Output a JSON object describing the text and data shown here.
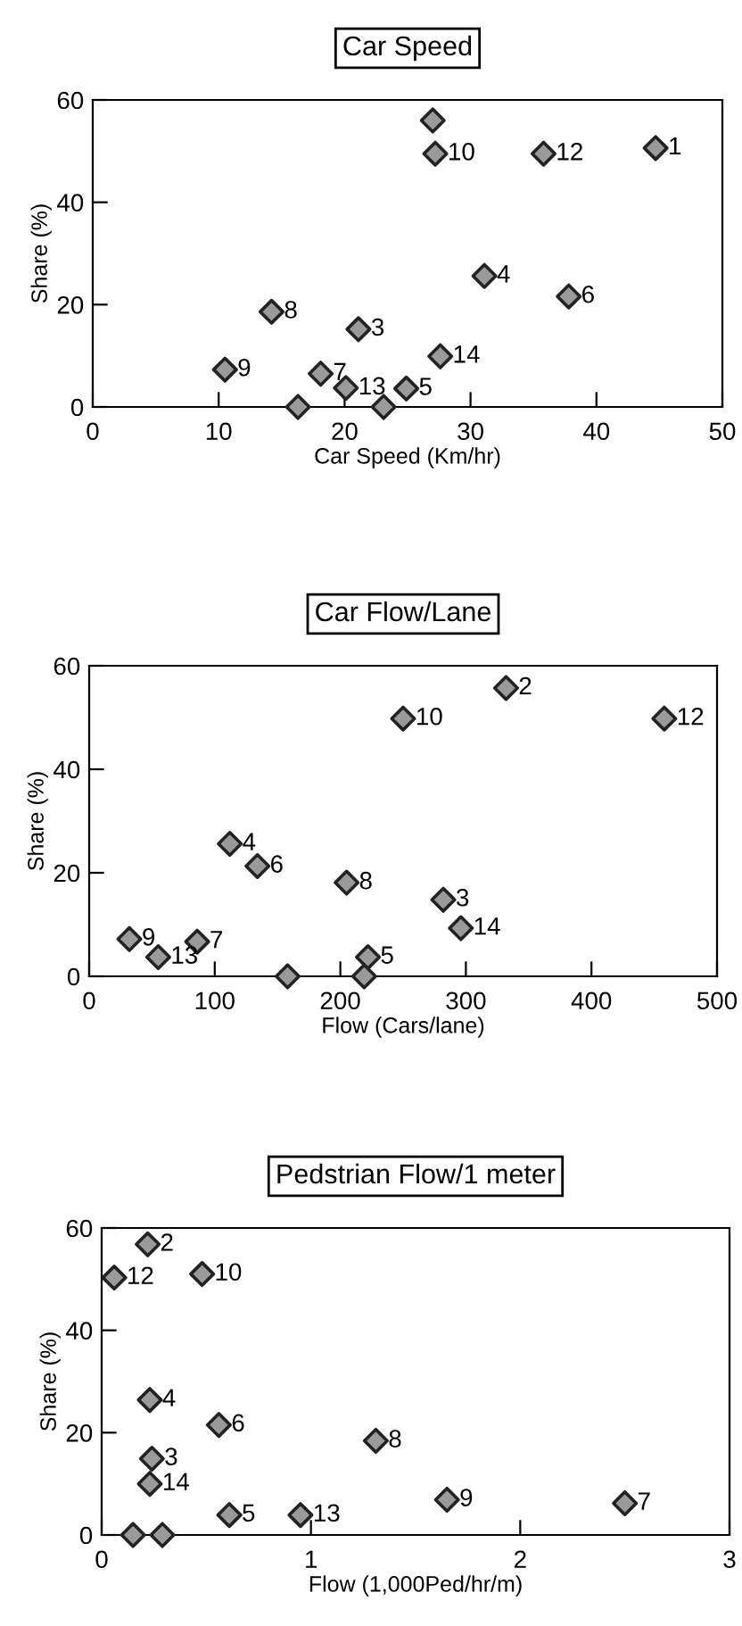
{
  "chart_data": [
    {
      "type": "scatter",
      "title": "Car Speed",
      "xlabel": "Car Speed (Km/hr)",
      "ylabel": "Share (%)",
      "xlim": [
        0,
        50
      ],
      "ylim": [
        0,
        60
      ],
      "xticks": [
        0,
        10,
        20,
        30,
        40,
        50
      ],
      "yticks": [
        0,
        20,
        40,
        60
      ],
      "marker": "diamond",
      "grid": false,
      "x": [
        27,
        27.2,
        35.8,
        44.7,
        31.1,
        37.8,
        14.2,
        21.1,
        27.6,
        10.5,
        18.1,
        20.1,
        24.9,
        16.3,
        23.1
      ],
      "values": [
        56,
        49.5,
        49.5,
        50.6,
        25.6,
        21.6,
        18.6,
        15.2,
        9.9,
        7.3,
        6.5,
        3.7,
        3.6,
        0,
        0
      ],
      "annotations": [
        {
          "text": "10",
          "x": 27.2,
          "y": 49.5
        },
        {
          "text": "12",
          "x": 35.8,
          "y": 49.5
        },
        {
          "text": "1",
          "x": 44.7,
          "y": 50.6
        },
        {
          "text": "4",
          "x": 31.1,
          "y": 25.6
        },
        {
          "text": "6",
          "x": 37.8,
          "y": 21.6
        },
        {
          "text": "8",
          "x": 14.2,
          "y": 18.6
        },
        {
          "text": "3",
          "x": 21.1,
          "y": 15.2
        },
        {
          "text": "14",
          "x": 27.6,
          "y": 9.9
        },
        {
          "text": "9",
          "x": 10.5,
          "y": 7.3
        },
        {
          "text": "7",
          "x": 18.1,
          "y": 6.5
        },
        {
          "text": "13",
          "x": 20.1,
          "y": 3.7
        },
        {
          "text": "5",
          "x": 24.9,
          "y": 3.6
        }
      ]
    },
    {
      "type": "scatter",
      "title": "Car Flow/Lane",
      "xlabel": "Flow (Cars/lane)",
      "ylabel": "Share (%)",
      "xlim": [
        0,
        500
      ],
      "ylim": [
        0,
        60
      ],
      "xticks": [
        0,
        100,
        200,
        300,
        400,
        500
      ],
      "yticks": [
        0,
        20,
        40,
        60
      ],
      "marker": "diamond",
      "grid": false,
      "x": [
        332,
        250,
        458,
        112,
        134,
        205,
        282,
        296,
        32,
        86,
        55,
        222,
        158,
        219
      ],
      "values": [
        55.7,
        49.8,
        49.8,
        25.6,
        21.3,
        18.1,
        14.8,
        9.3,
        7.2,
        6.7,
        3.7,
        3.7,
        0,
        0
      ],
      "annotations": [
        {
          "text": "2",
          "x": 332,
          "y": 55.7
        },
        {
          "text": "10",
          "x": 250,
          "y": 49.8
        },
        {
          "text": "12",
          "x": 458,
          "y": 49.8
        },
        {
          "text": "4",
          "x": 112,
          "y": 25.6
        },
        {
          "text": "6",
          "x": 134,
          "y": 21.3
        },
        {
          "text": "8",
          "x": 205,
          "y": 18.1
        },
        {
          "text": "3",
          "x": 282,
          "y": 14.8
        },
        {
          "text": "14",
          "x": 296,
          "y": 9.3
        },
        {
          "text": "9",
          "x": 32,
          "y": 7.2
        },
        {
          "text": "7",
          "x": 86,
          "y": 6.7
        },
        {
          "text": "13",
          "x": 55,
          "y": 3.7
        },
        {
          "text": "5",
          "x": 222,
          "y": 3.7
        }
      ]
    },
    {
      "type": "scatter",
      "title": "Pedstrian Flow/1 meter",
      "xlabel": "Flow (1,000Ped/hr/m)",
      "ylabel": "Share (%)",
      "xlim": [
        0,
        3
      ],
      "ylim": [
        0,
        60
      ],
      "xticks": [
        0,
        1,
        2,
        3
      ],
      "yticks": [
        0,
        20,
        40,
        60
      ],
      "marker": "diamond",
      "grid": false,
      "x": [
        0.22,
        0.06,
        0.48,
        0.23,
        0.56,
        1.31,
        0.24,
        0.23,
        1.65,
        2.5,
        0.61,
        0.95,
        0.15,
        0.29
      ],
      "values": [
        56.8,
        50.3,
        51,
        26.4,
        21.5,
        18.4,
        14.9,
        10,
        6.9,
        6.2,
        3.9,
        3.9,
        0,
        0
      ],
      "annotations": [
        {
          "text": "2",
          "x": 0.22,
          "y": 56.8
        },
        {
          "text": "12",
          "x": 0.06,
          "y": 50.3
        },
        {
          "text": "10",
          "x": 0.48,
          "y": 51
        },
        {
          "text": "4",
          "x": 0.23,
          "y": 26.4
        },
        {
          "text": "6",
          "x": 0.56,
          "y": 21.5
        },
        {
          "text": "8",
          "x": 1.31,
          "y": 18.4
        },
        {
          "text": "3",
          "x": 0.24,
          "y": 14.9
        },
        {
          "text": "14",
          "x": 0.23,
          "y": 10
        },
        {
          "text": "9",
          "x": 1.65,
          "y": 6.9
        },
        {
          "text": "7",
          "x": 2.5,
          "y": 6.2
        },
        {
          "text": "5",
          "x": 0.61,
          "y": 3.9
        },
        {
          "text": "13",
          "x": 0.95,
          "y": 3.9
        }
      ]
    }
  ]
}
